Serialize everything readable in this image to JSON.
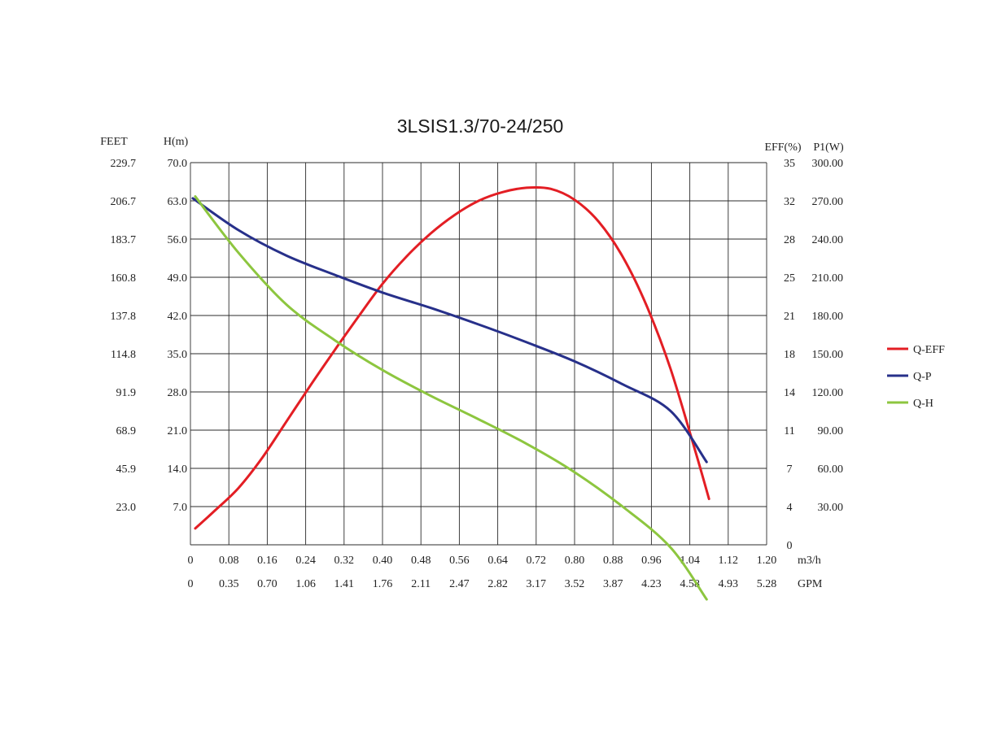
{
  "chart_data": {
    "type": "line",
    "title": "3LSIS1.3/70-24/250",
    "axes": {
      "left_outer_label": "FEET",
      "left_inner_label": "H(m)",
      "right_inner_label": "EFF(%)",
      "right_outer_label": "P1(W)",
      "x_primary_unit": "m3/h",
      "x_secondary_unit": "GPM"
    },
    "x_range": [
      0,
      1.2
    ],
    "h_range": [
      0,
      70
    ],
    "p_range": [
      0,
      300
    ],
    "eff_range": [
      0,
      35
    ],
    "x_ticks": [
      "0",
      "0.08",
      "0.16",
      "0.24",
      "0.32",
      "0.40",
      "0.48",
      "0.56",
      "0.64",
      "0.72",
      "0.80",
      "0.88",
      "0.96",
      "1.04",
      "1.12",
      "1.20"
    ],
    "gpm_ticks": [
      "0",
      "0.35",
      "0.70",
      "1.06",
      "1.41",
      "1.76",
      "2.11",
      "2.47",
      "2.82",
      "3.17",
      "3.52",
      "3.87",
      "4.23",
      "4.58",
      "4.93",
      "5.28"
    ],
    "h_ticks": [
      "",
      "7.0",
      "14.0",
      "21.0",
      "28.0",
      "35.0",
      "42.0",
      "49.0",
      "56.0",
      "63.0",
      "70.0"
    ],
    "feet_ticks": [
      "",
      "23.0",
      "45.9",
      "68.9",
      "91.9",
      "114.8",
      "137.8",
      "160.8",
      "183.7",
      "206.7",
      "229.7"
    ],
    "eff_ticks": [
      "0",
      "4",
      "7",
      "11",
      "14",
      "18",
      "21",
      "25",
      "28",
      "32",
      "35"
    ],
    "p_ticks": [
      "",
      "30.00",
      "60.00",
      "90.00",
      "120.00",
      "150.00",
      "180.00",
      "210.00",
      "240.00",
      "270.00",
      "300.00"
    ],
    "grid": true,
    "legend_position": "right",
    "series": [
      {
        "name": "Q-EFF",
        "axis": "eff",
        "color": "#e31e24",
        "x": [
          0.01,
          0.05,
          0.1,
          0.15,
          0.2,
          0.25,
          0.3,
          0.35,
          0.4,
          0.45,
          0.5,
          0.55,
          0.6,
          0.65,
          0.7,
          0.75,
          0.8,
          0.85,
          0.9,
          0.95,
          1.0,
          1.05,
          1.08
        ],
        "y": [
          1.5,
          3.1,
          5.2,
          8.0,
          11.3,
          14.6,
          17.8,
          20.9,
          23.9,
          26.4,
          28.5,
          30.2,
          31.5,
          32.3,
          32.7,
          32.6,
          31.6,
          29.6,
          26.4,
          21.9,
          16.1,
          8.8,
          4.2
        ]
      },
      {
        "name": "Q-P",
        "axis": "p",
        "color": "#27308a",
        "x": [
          0.005,
          0.1,
          0.2,
          0.3,
          0.4,
          0.5,
          0.6,
          0.7,
          0.8,
          0.9,
          1.0,
          1.075
        ],
        "y": [
          272,
          247,
          227,
          212,
          198,
          186,
          173,
          159,
          144,
          126,
          105,
          65
        ]
      },
      {
        "name": "Q-H",
        "axis": "h",
        "color": "#8dc63f",
        "x": [
          0.01,
          0.1,
          0.2,
          0.3,
          0.4,
          0.5,
          0.6,
          0.7,
          0.8,
          0.9,
          1.0,
          1.075
        ],
        "y": [
          63.8,
          53.5,
          44.0,
          37.5,
          32.0,
          27.3,
          23.0,
          18.5,
          13.3,
          7.0,
          -0.5,
          -10.0
        ]
      }
    ]
  }
}
